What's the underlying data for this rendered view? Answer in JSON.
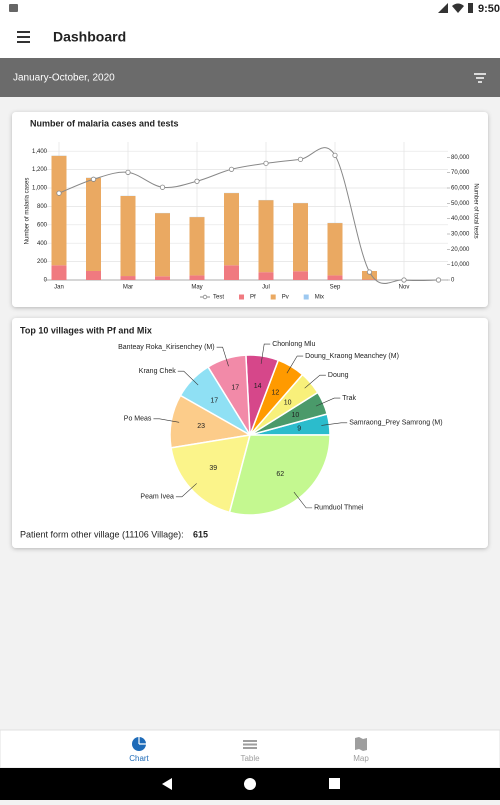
{
  "status_bar": {
    "time": "9:50"
  },
  "app_bar": {
    "title": "Dashboard"
  },
  "filter_bar": {
    "period": "January-October, 2020"
  },
  "chart_data": [
    {
      "type": "bar",
      "stacked": true,
      "title": "Number of malaria cases and tests",
      "ylabel": "Number of malaria cases",
      "y2label": "Number of total tests",
      "categories": [
        "Jan",
        null,
        "Mar",
        null,
        "May",
        null,
        "Jul",
        null,
        "Sep",
        null,
        "Nov",
        null
      ],
      "series": [
        {
          "name": "Test",
          "type": "line",
          "axis": "y2",
          "color": "#888888",
          "values": [
            56600,
            65700,
            70200,
            60500,
            64400,
            72200,
            76100,
            78700,
            81300,
            5200,
            0,
            0
          ]
        },
        {
          "name": "Pf",
          "color": "#f07a80",
          "values": [
            160,
            98,
            43,
            40,
            50,
            160,
            85,
            95,
            50,
            5,
            null,
            null
          ]
        },
        {
          "name": "Pv",
          "color": "#eaa962",
          "values": [
            1190,
            1012,
            870,
            687,
            634,
            785,
            783,
            741,
            569,
            93,
            null,
            null
          ]
        },
        {
          "name": "Mix",
          "color": "#9cc8f0",
          "values": [
            2,
            2,
            2,
            2,
            2,
            2,
            2,
            2,
            2,
            0,
            null,
            null
          ]
        }
      ],
      "ylim": [
        0,
        1500
      ],
      "yticks": [
        0,
        200,
        400,
        600,
        800,
        {
          "value": 1000,
          "label": "1,000"
        },
        {
          "value": 1200,
          "label": "1,200"
        },
        {
          "value": 1400,
          "label": "1,400"
        }
      ],
      "y2lim": [
        0,
        90000
      ],
      "y2ticks": [
        0,
        {
          "value": 10000,
          "label": "10,000"
        },
        {
          "value": 20000,
          "label": "20,000"
        },
        {
          "value": 30000,
          "label": "30,000"
        },
        {
          "value": 40000,
          "label": "40,000"
        },
        {
          "value": 50000,
          "label": "50,000"
        },
        {
          "value": 60000,
          "label": "60,000"
        },
        {
          "value": 70000,
          "label": "70,000"
        },
        {
          "value": 80000,
          "label": "80,000"
        }
      ],
      "grid": true,
      "legend": "bottom"
    },
    {
      "type": "pie",
      "title": "Top 10 villages with Pf and Mix",
      "categories": [
        "Samraong_Prey Samrong (M)",
        "Trak",
        "Doung",
        "Doung_Kraong Meanchey (M)",
        "Chonlong Mlu",
        "Banteay Roka_Kirisenchey (M)",
        "Krang Chek",
        "Po Meas",
        "Peam Ivea",
        "Rumduol Thmei"
      ],
      "values": [
        9,
        10,
        10,
        12,
        14,
        17,
        17,
        23,
        39,
        62
      ],
      "colors": [
        "#2bbccc",
        "#4a9a6a",
        "#f8f07a",
        "#ff9a00",
        "#d6478a",
        "#f28aa8",
        "#8fe0f4",
        "#fccc8a",
        "#fbf48a",
        "#c4f890"
      ]
    }
  ],
  "footnote": {
    "label": "Patient form other village (11106 Village):",
    "value": 615
  },
  "bottom_nav": {
    "items": [
      "Chart",
      "Table",
      "Map"
    ],
    "active": 0
  }
}
